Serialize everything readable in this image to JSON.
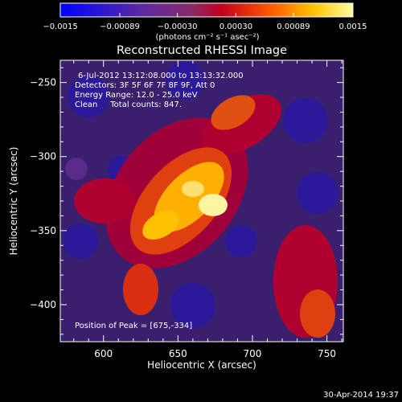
{
  "colorbar": {
    "ticks": [
      -0.0015,
      -0.00089,
      -0.0003,
      0.0003,
      0.00089,
      0.0015
    ],
    "tick_labels": [
      "−0.0015",
      "−0.00089",
      "−0.00030",
      "0.00030",
      "0.00089",
      "0.0015"
    ],
    "unit_label": "(photons cm⁻² s⁻¹ asec⁻²)",
    "range": [
      -0.0015,
      0.0015
    ]
  },
  "title": "Reconstructed RHESSI Image",
  "annotations": {
    "time": "6-Jul-2012 13:12:08.000 to 13:13:32.000",
    "detectors": "Detectors: 3F 5F 6F 7F 8F 9F, Att 0",
    "energy": "Energy Range: 12.0 - 25.0 keV",
    "clean": "Clean     Total counts: 847.",
    "peak": "Position of Peak = [675,-334]"
  },
  "footer": {
    "timestamp": "30-Apr-2014 19:37"
  },
  "colors": {
    "background": "#000000",
    "text": "#ffffff",
    "colormap_stops": [
      "#0000ff",
      "#5a2aa0",
      "#8a2a6a",
      "#c0001e",
      "#ff5a00",
      "#ffc000",
      "#ffffa0"
    ]
  },
  "chart_data": {
    "type": "heatmap",
    "title": "Reconstructed RHESSI Image",
    "xlabel": "Heliocentric X (arcsec)",
    "ylabel": "Heliocentric Y (arcsec)",
    "xlim": [
      571,
      761
    ],
    "ylim": [
      -425,
      -235
    ],
    "x_ticks": [
      600,
      650,
      700,
      750
    ],
    "y_ticks": [
      -250,
      -300,
      -350,
      -400
    ],
    "y_tick_labels": [
      "−250",
      "−300",
      "−350",
      "−400"
    ],
    "peak": {
      "x": 675,
      "y": -334
    },
    "grid": false,
    "colormap_range": [
      -0.0015,
      0.0015
    ],
    "units": "photons cm⁻² s⁻¹ asec⁻²"
  }
}
